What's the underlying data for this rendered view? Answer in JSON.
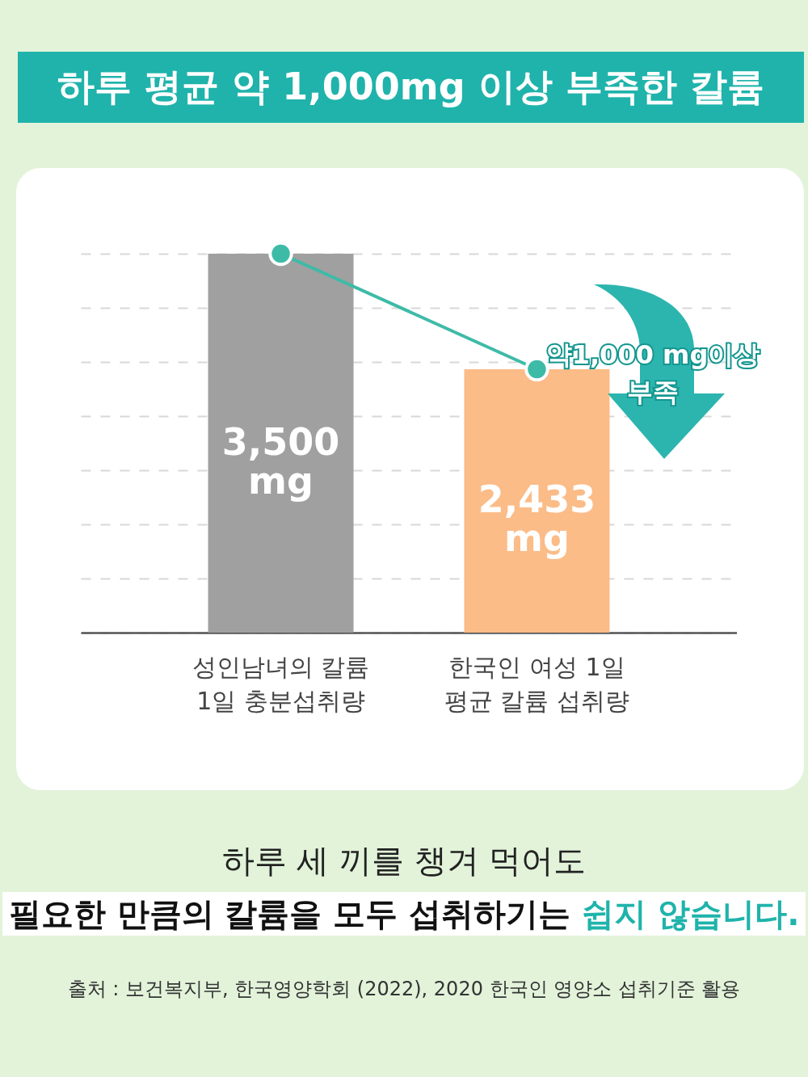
{
  "chart_data": {
    "type": "bar",
    "title": "하루 평균 약 1,000mg 이상 부족한 칼륨",
    "categories": [
      "성인남녀의 칼륨\n1일 충분섭취량",
      "한국인 여성 1일\n평균 칼륨 섭취량"
    ],
    "series": [
      {
        "colors": [
          "#a0a0a0",
          "#fbbc88"
        ],
        "values": [
          3500,
          2433
        ],
        "value_labels": [
          "3,500 mg",
          "2,433 mg"
        ]
      },
      {
        "type": "line",
        "color": "#3dbba7",
        "values": [
          3500,
          2433
        ]
      }
    ],
    "marker": "circle",
    "ylim": [
      0,
      3500
    ],
    "yticks": [
      {
        "value": 0,
        "label": null
      },
      {
        "value": 500,
        "label": null
      },
      {
        "value": 1000,
        "label": null
      },
      {
        "value": 1500,
        "label": null
      },
      {
        "value": 2000,
        "label": null
      },
      {
        "value": 2500,
        "label": null
      },
      {
        "value": 3000,
        "label": null
      },
      {
        "value": 3500,
        "label": null
      }
    ],
    "grid": "y",
    "tick_labels": "x",
    "legend": false,
    "annotations": [
      "약1,000 mg이상\n부족",
      "하루 세 끼를 챙겨 먹어도",
      "필요한 만큼의 칼륨을 모두 섭취하기는 쉽지 않습니다.",
      "출처 : 보건복지부, 한국영양학회 (2022), 2020 한국인 영양소 섭취기준 활용"
    ]
  }
}
